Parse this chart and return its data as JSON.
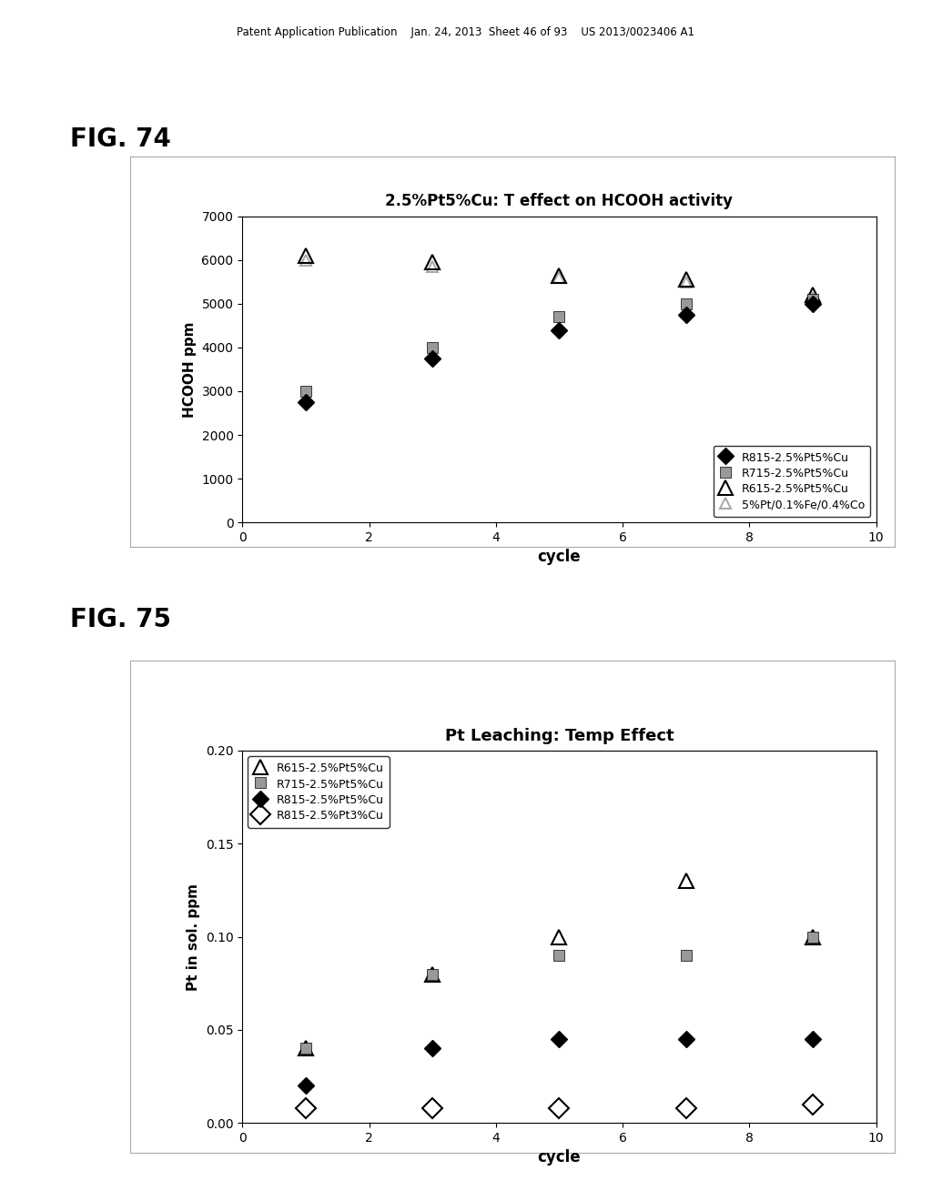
{
  "fig74": {
    "title": "2.5%Pt5%Cu: T effect on HCOOH activity",
    "xlabel": "cycle",
    "ylabel": "HCOOH ppm",
    "xlim": [
      0,
      10
    ],
    "ylim": [
      0,
      7000
    ],
    "yticks": [
      0,
      1000,
      2000,
      3000,
      4000,
      5000,
      6000,
      7000
    ],
    "xticks": [
      0,
      2,
      4,
      6,
      8,
      10
    ],
    "series": [
      {
        "label": "R815-2.5%Pt5%Cu",
        "x": [
          1,
          3,
          5,
          7,
          9
        ],
        "y": [
          2750,
          3750,
          4400,
          4750,
          5000
        ],
        "marker": "D",
        "color": "black",
        "markersize": 9
      },
      {
        "label": "R715-2.5%Pt5%Cu",
        "x": [
          1,
          3,
          5,
          7,
          9
        ],
        "y": [
          3000,
          4000,
          4700,
          5000,
          5100
        ],
        "marker": "s",
        "color": "#999999",
        "markersize": 9
      },
      {
        "label": "R615-2.5%Pt5%Cu",
        "x": [
          1,
          3,
          5,
          7,
          9
        ],
        "y": [
          6100,
          5950,
          5650,
          5550,
          5200
        ],
        "marker": "^",
        "color": "none",
        "markersize": 11,
        "edgecolor": "black"
      },
      {
        "label": "5%Pt/0.1%Fe/0.4%Co",
        "x": [
          1,
          3,
          5,
          7,
          9
        ],
        "y": [
          6000,
          5850,
          5600,
          5500,
          5150
        ],
        "marker": "^",
        "color": "none",
        "markersize": 9,
        "edgecolor": "#aaaaaa"
      }
    ]
  },
  "fig75": {
    "title": "Pt Leaching: Temp Effect",
    "xlabel": "cycle",
    "ylabel": "Pt in sol. ppm",
    "xlim": [
      0,
      10
    ],
    "ylim": [
      0,
      0.2
    ],
    "yticks": [
      0,
      0.05,
      0.1,
      0.15,
      0.2
    ],
    "xticks": [
      0,
      2,
      4,
      6,
      8,
      10
    ],
    "series": [
      {
        "label": "R615-2.5%Pt5%Cu",
        "x": [
          1,
          3,
          5,
          7,
          9
        ],
        "y": [
          0.04,
          0.08,
          0.1,
          0.13,
          0.1
        ],
        "marker": "^",
        "color": "none",
        "markersize": 11,
        "edgecolor": "black"
      },
      {
        "label": "R715-2.5%Pt5%Cu",
        "x": [
          1,
          3,
          5,
          7,
          9
        ],
        "y": [
          0.04,
          0.08,
          0.09,
          0.09,
          0.1
        ],
        "marker": "s",
        "color": "#999999",
        "markersize": 9,
        "edgecolor": "black"
      },
      {
        "label": "R815-2.5%Pt5%Cu",
        "x": [
          1,
          3,
          5,
          7,
          9
        ],
        "y": [
          0.02,
          0.04,
          0.045,
          0.045,
          0.045
        ],
        "marker": "D",
        "color": "black",
        "markersize": 9,
        "edgecolor": "black"
      },
      {
        "label": "R815-2.5%Pt3%Cu",
        "x": [
          1,
          3,
          5,
          7,
          9
        ],
        "y": [
          0.008,
          0.008,
          0.008,
          0.008,
          0.01
        ],
        "marker": "D",
        "color": "none",
        "markersize": 11,
        "edgecolor": "black"
      }
    ]
  },
  "header_text": "Patent Application Publication    Jan. 24, 2013  Sheet 46 of 93    US 2013/0023406 A1",
  "fig74_label": "FIG. 74",
  "fig75_label": "FIG. 75"
}
